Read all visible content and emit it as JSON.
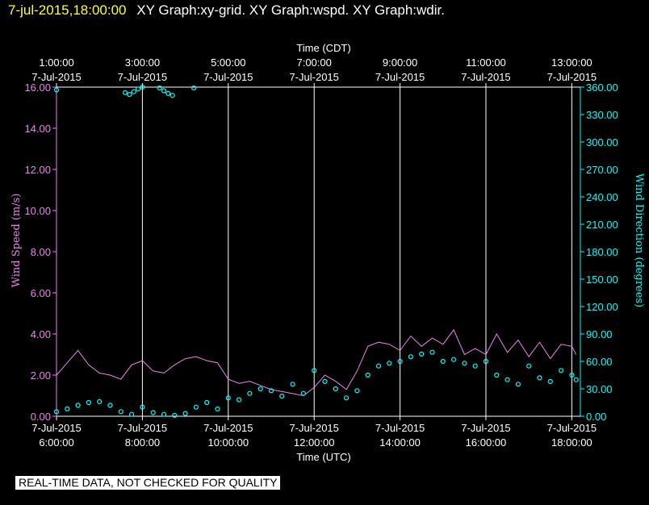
{
  "header": {
    "timestamp": "7-jul-2015,18:00:00",
    "title": "XY Graph:xy-grid.  XY Graph:wspd.  XY Graph:wdir."
  },
  "footer_note": "REAL-TIME DATA, NOT CHECKED FOR QUALITY",
  "colors": {
    "wind_speed": "#ee82ee",
    "wind_direction": "#00ffff",
    "grid": "#ffffff",
    "text": "#ffffff",
    "timestamp": "#ffff33",
    "background": "#000000"
  },
  "chart_data": {
    "type": "line",
    "top_axis_label": "Time (CDT)",
    "bottom_axis_label": "Time (UTC)",
    "left_axis_label": "Wind Speed (m/s)",
    "right_axis_label": "Wind Direction (degrees)",
    "x_range_utc_hours": [
      6.0,
      18.2
    ],
    "top_ticks": [
      {
        "time": "1:00:00",
        "date": "7-Jul-2015",
        "utc_hour": 6
      },
      {
        "time": "3:00:00",
        "date": "7-Jul-2015",
        "utc_hour": 8
      },
      {
        "time": "5:00:00",
        "date": "7-Jul-2015",
        "utc_hour": 10
      },
      {
        "time": "7:00:00",
        "date": "7-Jul-2015",
        "utc_hour": 12
      },
      {
        "time": "9:00:00",
        "date": "7-Jul-2015",
        "utc_hour": 14
      },
      {
        "time": "11:00:00",
        "date": "7-Jul-2015",
        "utc_hour": 16
      },
      {
        "time": "13:00:00",
        "date": "7-Jul-2015",
        "utc_hour": 18
      }
    ],
    "bottom_ticks": [
      {
        "date": "7-Jul-2015",
        "time": "6:00:00",
        "utc_hour": 6
      },
      {
        "date": "7-Jul-2015",
        "time": "8:00:00",
        "utc_hour": 8
      },
      {
        "date": "7-Jul-2015",
        "time": "10:00:00",
        "utc_hour": 10
      },
      {
        "date": "7-Jul-2015",
        "time": "12:00:00",
        "utc_hour": 12
      },
      {
        "date": "7-Jul-2015",
        "time": "14:00:00",
        "utc_hour": 14
      },
      {
        "date": "7-Jul-2015",
        "time": "16:00:00",
        "utc_hour": 16
      },
      {
        "date": "7-Jul-2015",
        "time": "18:00:00",
        "utc_hour": 18
      }
    ],
    "left_axis": {
      "range": [
        0,
        16
      ],
      "ticks": [
        {
          "value": 0,
          "label": "0.00"
        },
        {
          "value": 2,
          "label": "2.00"
        },
        {
          "value": 4,
          "label": "4.00"
        },
        {
          "value": 6,
          "label": "6.00"
        },
        {
          "value": 8,
          "label": "8.00"
        },
        {
          "value": 10,
          "label": "10.00"
        },
        {
          "value": 12,
          "label": "12.00"
        },
        {
          "value": 14,
          "label": "14.00"
        },
        {
          "value": 16,
          "label": "16.00"
        }
      ]
    },
    "right_axis": {
      "range": [
        0,
        360
      ],
      "ticks": [
        {
          "value": 0,
          "label": "0.00"
        },
        {
          "value": 30,
          "label": "30.00"
        },
        {
          "value": 60,
          "label": "60.00"
        },
        {
          "value": 90,
          "label": "90.00"
        },
        {
          "value": 120,
          "label": "120.00"
        },
        {
          "value": 150,
          "label": "150.00"
        },
        {
          "value": 180,
          "label": "180.00"
        },
        {
          "value": 210,
          "label": "210.00"
        },
        {
          "value": 240,
          "label": "240.00"
        },
        {
          "value": 270,
          "label": "270.00"
        },
        {
          "value": 300,
          "label": "300.00"
        },
        {
          "value": 330,
          "label": "330.00"
        },
        {
          "value": 360,
          "label": "360.00"
        }
      ]
    },
    "vertical_grid_utc_hours": [
      8,
      10,
      12,
      14,
      16,
      18
    ],
    "series": [
      {
        "name": "Wind Speed (m/s)",
        "style": "line",
        "axis": "left",
        "x": [
          6.0,
          6.25,
          6.5,
          6.75,
          7.0,
          7.25,
          7.5,
          7.75,
          8.0,
          8.25,
          8.5,
          8.75,
          9.0,
          9.25,
          9.5,
          9.75,
          10.0,
          10.25,
          10.5,
          10.75,
          11.0,
          11.25,
          11.5,
          11.75,
          12.0,
          12.25,
          12.5,
          12.75,
          13.0,
          13.25,
          13.5,
          13.75,
          14.0,
          14.25,
          14.5,
          14.75,
          15.0,
          15.25,
          15.5,
          15.75,
          16.0,
          16.25,
          16.5,
          16.75,
          17.0,
          17.25,
          17.5,
          17.75,
          18.0,
          18.1
        ],
        "y": [
          2.0,
          2.6,
          3.2,
          2.5,
          2.1,
          2.0,
          1.8,
          2.5,
          2.7,
          2.2,
          2.1,
          2.5,
          2.8,
          2.9,
          2.7,
          2.6,
          1.8,
          1.6,
          1.7,
          1.5,
          1.3,
          1.2,
          1.1,
          1.0,
          1.4,
          2.0,
          1.7,
          1.3,
          2.2,
          3.4,
          3.6,
          3.5,
          3.2,
          3.9,
          3.4,
          3.8,
          3.5,
          4.2,
          3.0,
          3.3,
          3.0,
          4.0,
          3.1,
          3.7,
          2.9,
          3.6,
          2.8,
          3.5,
          3.4,
          3.0
        ]
      },
      {
        "name": "Wind Direction (degrees)",
        "style": "markers",
        "axis": "right",
        "x": [
          6.0,
          6.25,
          6.5,
          6.75,
          7.0,
          7.25,
          7.5,
          7.75,
          8.0,
          8.25,
          8.5,
          8.75,
          9.0,
          9.25,
          9.5,
          9.75,
          10.0,
          10.25,
          10.5,
          10.75,
          11.0,
          11.25,
          11.5,
          11.75,
          12.0,
          12.25,
          12.5,
          12.75,
          13.0,
          13.25,
          13.5,
          13.75,
          14.0,
          14.25,
          14.5,
          14.75,
          15.0,
          15.25,
          15.5,
          15.75,
          16.0,
          16.25,
          16.5,
          16.75,
          17.0,
          17.25,
          17.5,
          17.75,
          18.0,
          18.1
        ],
        "y": [
          5,
          8,
          12,
          15,
          16,
          12,
          5,
          2,
          10,
          4,
          2,
          1,
          3,
          10,
          15,
          8,
          20,
          18,
          25,
          30,
          28,
          22,
          35,
          25,
          50,
          38,
          30,
          20,
          28,
          45,
          55,
          58,
          60,
          65,
          68,
          70,
          60,
          62,
          58,
          55,
          60,
          45,
          40,
          35,
          55,
          42,
          38,
          50,
          45,
          40
        ]
      },
      {
        "name": "Wind Direction (degrees) near north",
        "style": "markers",
        "axis": "right",
        "x": [
          6.0,
          7.6,
          7.7,
          7.8,
          7.9,
          8.0,
          8.4,
          8.5,
          8.6,
          8.7,
          9.2
        ],
        "y": [
          357,
          354,
          352,
          355,
          358,
          360,
          359,
          356,
          353,
          351,
          359
        ]
      }
    ]
  }
}
